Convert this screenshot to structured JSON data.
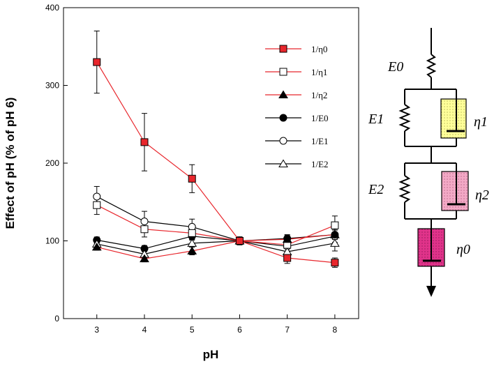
{
  "chart_data": {
    "type": "line",
    "title": "",
    "xlabel": "pH",
    "ylabel": "Effect of pH (% of pH 6)",
    "x": [
      3,
      4,
      5,
      6,
      7,
      8
    ],
    "xlim": [
      2.3,
      8.5
    ],
    "ylim": [
      0,
      400
    ],
    "xticks": [
      3,
      4,
      5,
      6,
      7,
      8
    ],
    "yticks": [
      0,
      100,
      200,
      300,
      400
    ],
    "grid": false,
    "legend_position": "top-right",
    "series": [
      {
        "name": "1/η0",
        "color": "#e8262c",
        "marker": "square",
        "fill": "#e8262c",
        "values": [
          330,
          227,
          180,
          100,
          78,
          72
        ],
        "errors": [
          40,
          37,
          18,
          5,
          7,
          6
        ]
      },
      {
        "name": "1/η1",
        "color": "#e8262c",
        "marker": "square",
        "fill": "#ffffff",
        "values": [
          146,
          115,
          110,
          100,
          95,
          120
        ],
        "errors": [
          12,
          10,
          8,
          5,
          8,
          12
        ]
      },
      {
        "name": "1/η2",
        "color": "#e8262c",
        "marker": "triangle",
        "fill": "#000000",
        "values": [
          92,
          77,
          87,
          100,
          102,
          108
        ],
        "errors": [
          4,
          4,
          5,
          5,
          5,
          6
        ]
      },
      {
        "name": "1/E0",
        "color": "#000000",
        "marker": "circle",
        "fill": "#000000",
        "values": [
          101,
          90,
          106,
          100,
          103,
          108
        ],
        "errors": [
          4,
          4,
          5,
          5,
          5,
          6
        ]
      },
      {
        "name": "1/E1",
        "color": "#000000",
        "marker": "circle",
        "fill": "#ffffff",
        "values": [
          157,
          125,
          118,
          100,
          93,
          106
        ],
        "errors": [
          13,
          13,
          10,
          5,
          8,
          8
        ]
      },
      {
        "name": "1/E2",
        "color": "#000000",
        "marker": "triangle",
        "fill": "#ffffff",
        "values": [
          96,
          83,
          97,
          100,
          86,
          97
        ],
        "errors": [
          5,
          5,
          5,
          5,
          10,
          10
        ]
      }
    ]
  },
  "diagram": {
    "labels": {
      "e0": "E0",
      "e1": "E1",
      "e2": "E2",
      "eta1": "η1",
      "eta2": "η2",
      "eta0": "η0"
    },
    "colors": {
      "dashpot1": "#ffff99",
      "dashpot2": "#f3a9c6",
      "dashpot0": "#e0338a"
    }
  }
}
